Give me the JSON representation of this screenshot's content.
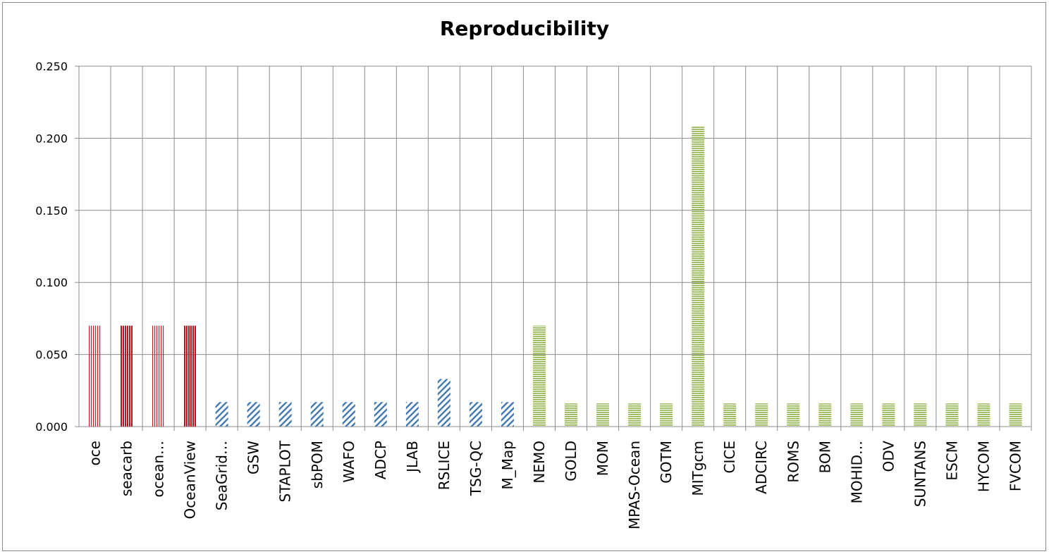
{
  "chart_data": {
    "type": "bar",
    "title": "Reproducibility",
    "xlabel": "",
    "ylabel": "",
    "ylim": [
      0,
      0.25
    ],
    "yticks": [
      "0.000",
      "0.050",
      "0.100",
      "0.150",
      "0.200",
      "0.250"
    ],
    "ytick_values": [
      0,
      0.05,
      0.1,
      0.15,
      0.2,
      0.25
    ],
    "grid": true,
    "categories": [
      "oce",
      "seacarb",
      "ocean…",
      "OceanView",
      "SeaGrid…",
      "GSW",
      "STAPLOT",
      "sbPOM",
      "WAFO",
      "ADCP",
      "JLAB",
      "RSLICE",
      "TSG-QC",
      "M_Map",
      "NEMO",
      "GOLD",
      "MOM",
      "MPAS-Ocean",
      "GOTM",
      "MITgcm",
      "CICE",
      "ADCIRC",
      "ROMS",
      "BOM",
      "MOHID…",
      "ODV",
      "SUNTANS",
      "ESCM",
      "HYCOM",
      "FVCOM"
    ],
    "values": [
      0.07,
      0.07,
      0.07,
      0.07,
      0.017,
      0.017,
      0.017,
      0.017,
      0.017,
      0.017,
      0.017,
      0.033,
      0.017,
      0.017,
      0.07,
      0.016,
      0.016,
      0.016,
      0.016,
      0.208,
      0.016,
      0.016,
      0.016,
      0.016,
      0.016,
      0.016,
      0.016,
      0.016,
      0.016,
      0.016
    ],
    "bar_patterns": [
      "vstripe-light",
      "vstripe-dark",
      "vstripe-light",
      "vstripe-dark",
      "diag-blue",
      "diag-blue",
      "diag-blue",
      "diag-blue",
      "diag-blue",
      "diag-blue",
      "diag-blue",
      "diag-blue",
      "diag-blue",
      "diag-blue",
      "hstripe-green",
      "hstripe-green",
      "hstripe-green",
      "hstripe-green",
      "hstripe-green",
      "hstripe-green",
      "hstripe-green",
      "hstripe-green",
      "hstripe-green",
      "hstripe-green",
      "hstripe-green",
      "hstripe-green",
      "hstripe-green",
      "hstripe-green",
      "hstripe-green",
      "hstripe-green"
    ],
    "colors": {
      "red": "#c0202a",
      "blue": "#3f78b0",
      "green": "#8cb043",
      "grid": "#8c8c8c"
    }
  }
}
